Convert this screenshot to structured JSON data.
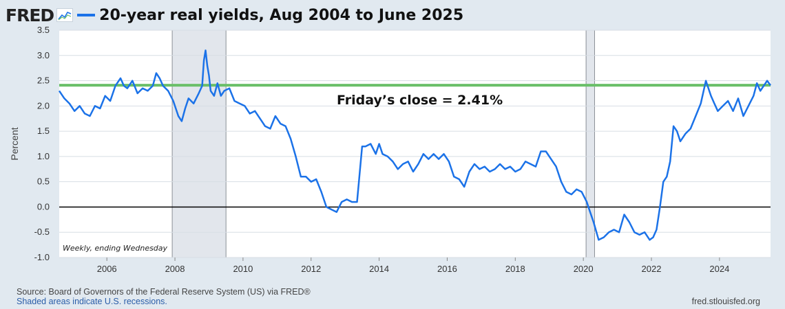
{
  "header": {
    "logo": "FRED",
    "logo_icon": "trend-chart-icon",
    "title": "20-year real yields, Aug 2004 to June 2025"
  },
  "footer": {
    "source": "Source: Board of Governors of the Federal Reserve System (US) via FRED®",
    "recession_note": "Shaded areas indicate U.S. recessions.",
    "url": "fred.stlouisfed.org"
  },
  "colors": {
    "series": "#1b72e8",
    "reference_line": "#6abf69",
    "recession": "#e2e6ec",
    "background": "#e1e9f0"
  },
  "chart_data": {
    "type": "line",
    "ylabel": "Percent",
    "xlabel": "",
    "xlim": [
      2004.6,
      2025.5
    ],
    "ylim": [
      -1.0,
      3.5
    ],
    "x_ticks": [
      2006,
      2008,
      2010,
      2012,
      2014,
      2016,
      2018,
      2020,
      2022,
      2024
    ],
    "y_ticks": [
      -1.0,
      -0.5,
      0.0,
      0.5,
      1.0,
      1.5,
      2.0,
      2.5,
      3.0,
      3.5
    ],
    "y_tick_labels": [
      "-1.0",
      "-0.5",
      "0.0",
      "0.5",
      "1.0",
      "1.5",
      "2.0",
      "2.5",
      "3.0",
      "3.5"
    ],
    "grid": true,
    "recessions": [
      [
        2007.92,
        2009.5
      ],
      [
        2020.08,
        2020.33
      ]
    ],
    "reference_line": {
      "value": 2.41,
      "label": "Friday’s close = 2.41%"
    },
    "zero_line": 0.0,
    "frequency_note": "Weekly, ending Wednesday",
    "series": [
      {
        "x": [
          2004.6,
          2004.75,
          2004.9,
          2005.05,
          2005.2,
          2005.35,
          2005.5,
          2005.65,
          2005.8,
          2005.95,
          2006.1,
          2006.25,
          2006.4,
          2006.5,
          2006.6,
          2006.75,
          2006.9,
          2007.05,
          2007.2,
          2007.35,
          2007.45,
          2007.55,
          2007.65,
          2007.8,
          2007.95,
          2008.1,
          2008.2,
          2008.3,
          2008.4,
          2008.55,
          2008.7,
          2008.8,
          2008.85,
          2008.9,
          2008.95,
          2009.0,
          2009.05,
          2009.15,
          2009.25,
          2009.35,
          2009.45,
          2009.6,
          2009.75,
          2009.9,
          2010.05,
          2010.2,
          2010.35,
          2010.5,
          2010.65,
          2010.8,
          2010.95,
          2011.1,
          2011.25,
          2011.4,
          2011.55,
          2011.7,
          2011.85,
          2012.0,
          2012.15,
          2012.3,
          2012.45,
          2012.6,
          2012.75,
          2012.9,
          2013.05,
          2013.2,
          2013.35,
          2013.5,
          2013.6,
          2013.75,
          2013.9,
          2014.0,
          2014.1,
          2014.25,
          2014.4,
          2014.55,
          2014.7,
          2014.85,
          2015.0,
          2015.15,
          2015.3,
          2015.45,
          2015.6,
          2015.75,
          2015.9,
          2016.05,
          2016.2,
          2016.35,
          2016.5,
          2016.65,
          2016.8,
          2016.95,
          2017.1,
          2017.25,
          2017.4,
          2017.55,
          2017.7,
          2017.85,
          2018.0,
          2018.15,
          2018.3,
          2018.45,
          2018.6,
          2018.75,
          2018.9,
          2019.05,
          2019.2,
          2019.35,
          2019.5,
          2019.65,
          2019.8,
          2019.95,
          2020.1,
          2020.2,
          2020.3,
          2020.45,
          2020.6,
          2020.75,
          2020.9,
          2021.05,
          2021.2,
          2021.35,
          2021.5,
          2021.65,
          2021.8,
          2021.95,
          2022.05,
          2022.15,
          2022.25,
          2022.35,
          2022.45,
          2022.55,
          2022.65,
          2022.75,
          2022.85,
          2023.0,
          2023.15,
          2023.3,
          2023.45,
          2023.6,
          2023.75,
          2023.85,
          2023.95,
          2024.1,
          2024.25,
          2024.4,
          2024.55,
          2024.7,
          2024.85,
          2025.0,
          2025.1,
          2025.2,
          2025.3,
          2025.4,
          2025.5
        ],
        "values": [
          2.3,
          2.15,
          2.05,
          1.9,
          2.0,
          1.85,
          1.8,
          2.0,
          1.95,
          2.2,
          2.1,
          2.4,
          2.55,
          2.4,
          2.35,
          2.5,
          2.25,
          2.35,
          2.3,
          2.4,
          2.65,
          2.55,
          2.4,
          2.3,
          2.1,
          1.8,
          1.7,
          1.95,
          2.15,
          2.05,
          2.25,
          2.4,
          2.9,
          3.1,
          2.8,
          2.6,
          2.3,
          2.2,
          2.45,
          2.2,
          2.3,
          2.35,
          2.1,
          2.05,
          2.0,
          1.85,
          1.9,
          1.75,
          1.6,
          1.55,
          1.8,
          1.65,
          1.6,
          1.35,
          1.0,
          0.6,
          0.6,
          0.5,
          0.55,
          0.3,
          0.0,
          -0.05,
          -0.1,
          0.1,
          0.15,
          0.1,
          0.1,
          1.2,
          1.2,
          1.25,
          1.05,
          1.25,
          1.05,
          1.0,
          0.9,
          0.75,
          0.85,
          0.9,
          0.7,
          0.85,
          1.05,
          0.95,
          1.05,
          0.95,
          1.05,
          0.9,
          0.6,
          0.55,
          0.4,
          0.7,
          0.85,
          0.75,
          0.8,
          0.7,
          0.75,
          0.85,
          0.75,
          0.8,
          0.7,
          0.75,
          0.9,
          0.85,
          0.8,
          1.1,
          1.1,
          0.95,
          0.8,
          0.5,
          0.3,
          0.25,
          0.35,
          0.3,
          0.1,
          -0.1,
          -0.3,
          -0.65,
          -0.6,
          -0.5,
          -0.45,
          -0.5,
          -0.15,
          -0.3,
          -0.5,
          -0.55,
          -0.5,
          -0.65,
          -0.6,
          -0.45,
          0.0,
          0.5,
          0.6,
          0.9,
          1.6,
          1.5,
          1.3,
          1.45,
          1.55,
          1.8,
          2.05,
          2.5,
          2.2,
          2.05,
          1.9,
          2.0,
          2.1,
          1.9,
          2.15,
          1.8,
          2.0,
          2.2,
          2.45,
          2.3,
          2.4,
          2.5,
          2.41
        ]
      }
    ]
  }
}
